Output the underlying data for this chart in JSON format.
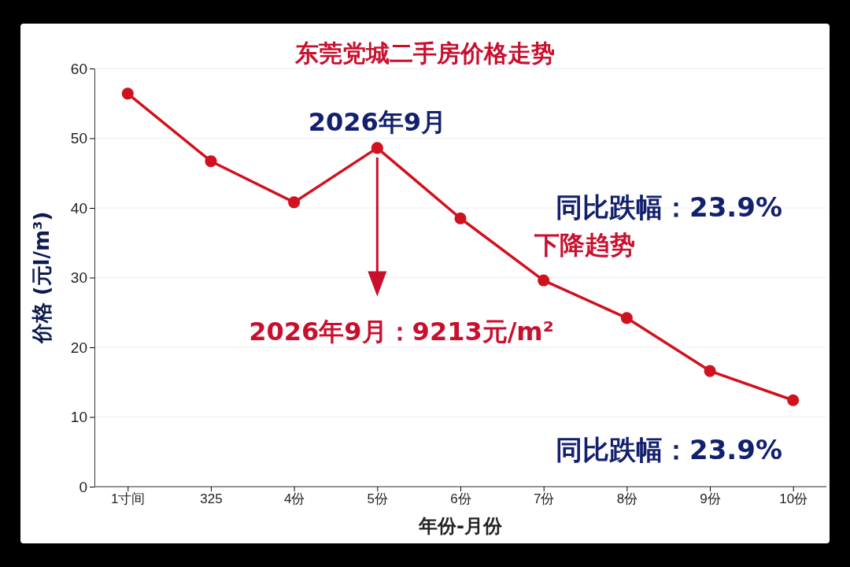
{
  "chart_data": {
    "type": "line",
    "title": "东莞党城二手房价格走势",
    "xlabel": "年份-月份",
    "ylabel": "价格 (元l/m³)",
    "categories": [
      "1寸间",
      "325",
      "4份",
      "5份",
      "6份",
      "7份",
      "8份",
      "9份",
      "10份"
    ],
    "series": [
      {
        "color": "#d0121f",
        "values": [
          56.4,
          46.7,
          40.8,
          48.6,
          38.5,
          29.6,
          24.2,
          16.6,
          12.4
        ]
      }
    ],
    "ylim": [
      0,
      60
    ],
    "yticks": [
      0,
      10,
      20,
      30,
      40,
      50,
      60
    ],
    "grid": "y",
    "marker": "circle",
    "line_style": "solid",
    "annotations": [
      {
        "text": "2026年9月",
        "x": "5份",
        "y": 48.6
      },
      "2026年9月：9213元/m²",
      "同比跌幅：23.9%",
      "下降趋势",
      "同比跌幅：23.9%"
    ]
  }
}
